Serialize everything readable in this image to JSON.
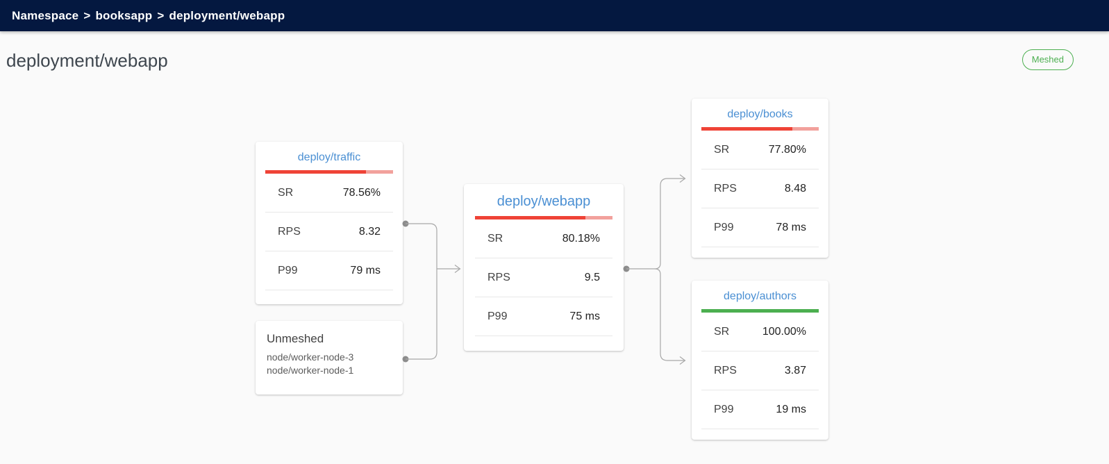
{
  "header": {
    "breadcrumb": {
      "items": [
        "Namespace",
        "booksapp",
        "deployment/webapp"
      ],
      "separator": ">"
    }
  },
  "page": {
    "title": "deployment/webapp",
    "meshed_badge": "Meshed"
  },
  "colors": {
    "header_bg": "#041840",
    "link_blue": "#4a8fd3",
    "failure_red": "#ef4337",
    "failure_red_track": "#f2a19c",
    "success_green": "#4caf50",
    "badge_green": "#4caf50",
    "connector_gray": "#a8a8a8"
  },
  "graph": {
    "nodes": {
      "traffic": {
        "title": "deploy/traffic",
        "success_rate_percent": 78.56,
        "metrics": [
          {
            "label": "SR",
            "value": "78.56%"
          },
          {
            "label": "RPS",
            "value": "8.32"
          },
          {
            "label": "P99",
            "value": "79 ms"
          }
        ]
      },
      "unmeshed": {
        "title": "Unmeshed",
        "lines": [
          "node/worker-node-3",
          "node/worker-node-1"
        ]
      },
      "webapp": {
        "title": "deploy/webapp",
        "success_rate_percent": 80.18,
        "metrics": [
          {
            "label": "SR",
            "value": "80.18%"
          },
          {
            "label": "RPS",
            "value": "9.5"
          },
          {
            "label": "P99",
            "value": "75 ms"
          }
        ]
      },
      "books": {
        "title": "deploy/books",
        "success_rate_percent": 77.8,
        "metrics": [
          {
            "label": "SR",
            "value": "77.80%"
          },
          {
            "label": "RPS",
            "value": "8.48"
          },
          {
            "label": "P99",
            "value": "78 ms"
          }
        ]
      },
      "authors": {
        "title": "deploy/authors",
        "success_rate_percent": 100,
        "metrics": [
          {
            "label": "SR",
            "value": "100.00%"
          },
          {
            "label": "RPS",
            "value": "3.87"
          },
          {
            "label": "P99",
            "value": "19 ms"
          }
        ]
      }
    }
  }
}
